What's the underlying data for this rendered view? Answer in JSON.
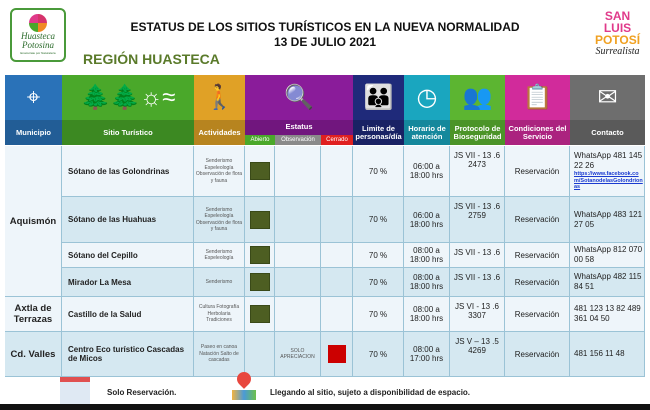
{
  "header": {
    "title_line1": "ESTATUS DE LOS SITIOS TURÍSTICOS EN LA NUEVA NORMALIDAD",
    "title_line2": "13 DE JULIO 2021",
    "region": "REGIÓN HUASTECA",
    "logo_left": {
      "l1": "Huasteca",
      "l2": "Potosina",
      "l3": "Enamórate por Naturaleza"
    },
    "logo_right": {
      "l1": "SAN LUIS",
      "l2": "POTOSÍ",
      "l3": "Surrealista"
    }
  },
  "columns": {
    "municipio": "Municipio",
    "sitio": "Sitio Turístico",
    "actividades": "Actividades",
    "estatus": "Estatus",
    "abierto": "Abierto",
    "observacion": "Observación",
    "cerrado": "Cerrado",
    "limite": "Limite de personas/día",
    "horario": "Horario de atención",
    "protocolo": "Protocolo de Bioseguridad",
    "condiciones": "Condiciones del Servicio",
    "contacto": "Contacto"
  },
  "colors": {
    "municipio": "#2a72b8",
    "sitio": "#4aa82a",
    "actividades": "#e0a126",
    "estatus": "#8a1c9a",
    "limite": "#1f2a7a",
    "horario": "#1aa6bf",
    "protocolo": "#5cb531",
    "condiciones": "#d12b9b",
    "contacto": "#6e6e6e",
    "abierto": "#4d5e22",
    "cerrado": "#cc0000"
  },
  "municipios": [
    "Aquismón",
    "Axtla de Terrazas",
    "Cd. Valles"
  ],
  "rows": [
    {
      "sitio": "Sótano de las Golondrinas",
      "actividades": "Senderismo Espeleología Observación de flora y fauna",
      "status": "abierto",
      "limite": "70 %",
      "horario": "06:00 a 18:00 hrs",
      "protocolo": "JS VII - 13 .6 2473",
      "condiciones": "Reservación",
      "contacto": "WhatsApp 481 145 22 26",
      "link": "https://www.facebook.com/SotanodelasGolondrionas"
    },
    {
      "sitio": "Sótano de las Huahuas",
      "actividades": "Senderismo Espeleología Observación de flora y fauna",
      "status": "abierto",
      "limite": "70 %",
      "horario": "06:00 a 18:00 hrs",
      "protocolo": "JS VII - 13 .6 2759",
      "condiciones": "Reservación",
      "contacto": "WhatsApp 483 121 27 05"
    },
    {
      "sitio": "Sótano del Cepillo",
      "actividades": "Senderismo Espeleología",
      "status": "abierto",
      "limite": "70 %",
      "horario": "08:00 a 18:00 hrs",
      "protocolo": "JS VII - 13 .6",
      "condiciones": "Reservación",
      "contacto": "WhatsApp 812 070 00 58"
    },
    {
      "sitio": "Mirador La Mesa",
      "actividades": "Senderismo",
      "status": "abierto",
      "limite": "70 %",
      "horario": "08:00 a 18:00 hrs",
      "protocolo": "JS VII - 13 .6",
      "condiciones": "Reservación",
      "contacto": "WhatsApp 482 115 84 51"
    },
    {
      "sitio": "Castillo de la Salud",
      "actividades": "Cultura Fotografía Herbolaria Tradiciones",
      "status": "abierto",
      "limite": "70 %",
      "horario": "08:00 a 18:00 hrs",
      "protocolo": "JS VI - 13 .6 3307",
      "condiciones": "Reservación",
      "contacto": "481 123 13 82 489 361 04 50"
    },
    {
      "sitio": "Centro Eco turístico Cascadas de Micos",
      "actividades": "Paseo en canoa Natación Salto de cascadas",
      "status": "cerrado",
      "observacion": "SOLO APRECIACION",
      "limite": "70 %",
      "horario": "08:00 a 17:00 hrs",
      "protocolo": "JS V – 13 .5 4269",
      "condiciones": "Reservación",
      "contacto": "481 156 11 48"
    }
  ],
  "footer": {
    "reservation": "Solo Reservación.",
    "walkin": "Llegando al sitio, sujeto a disponibilidad de espacio."
  }
}
